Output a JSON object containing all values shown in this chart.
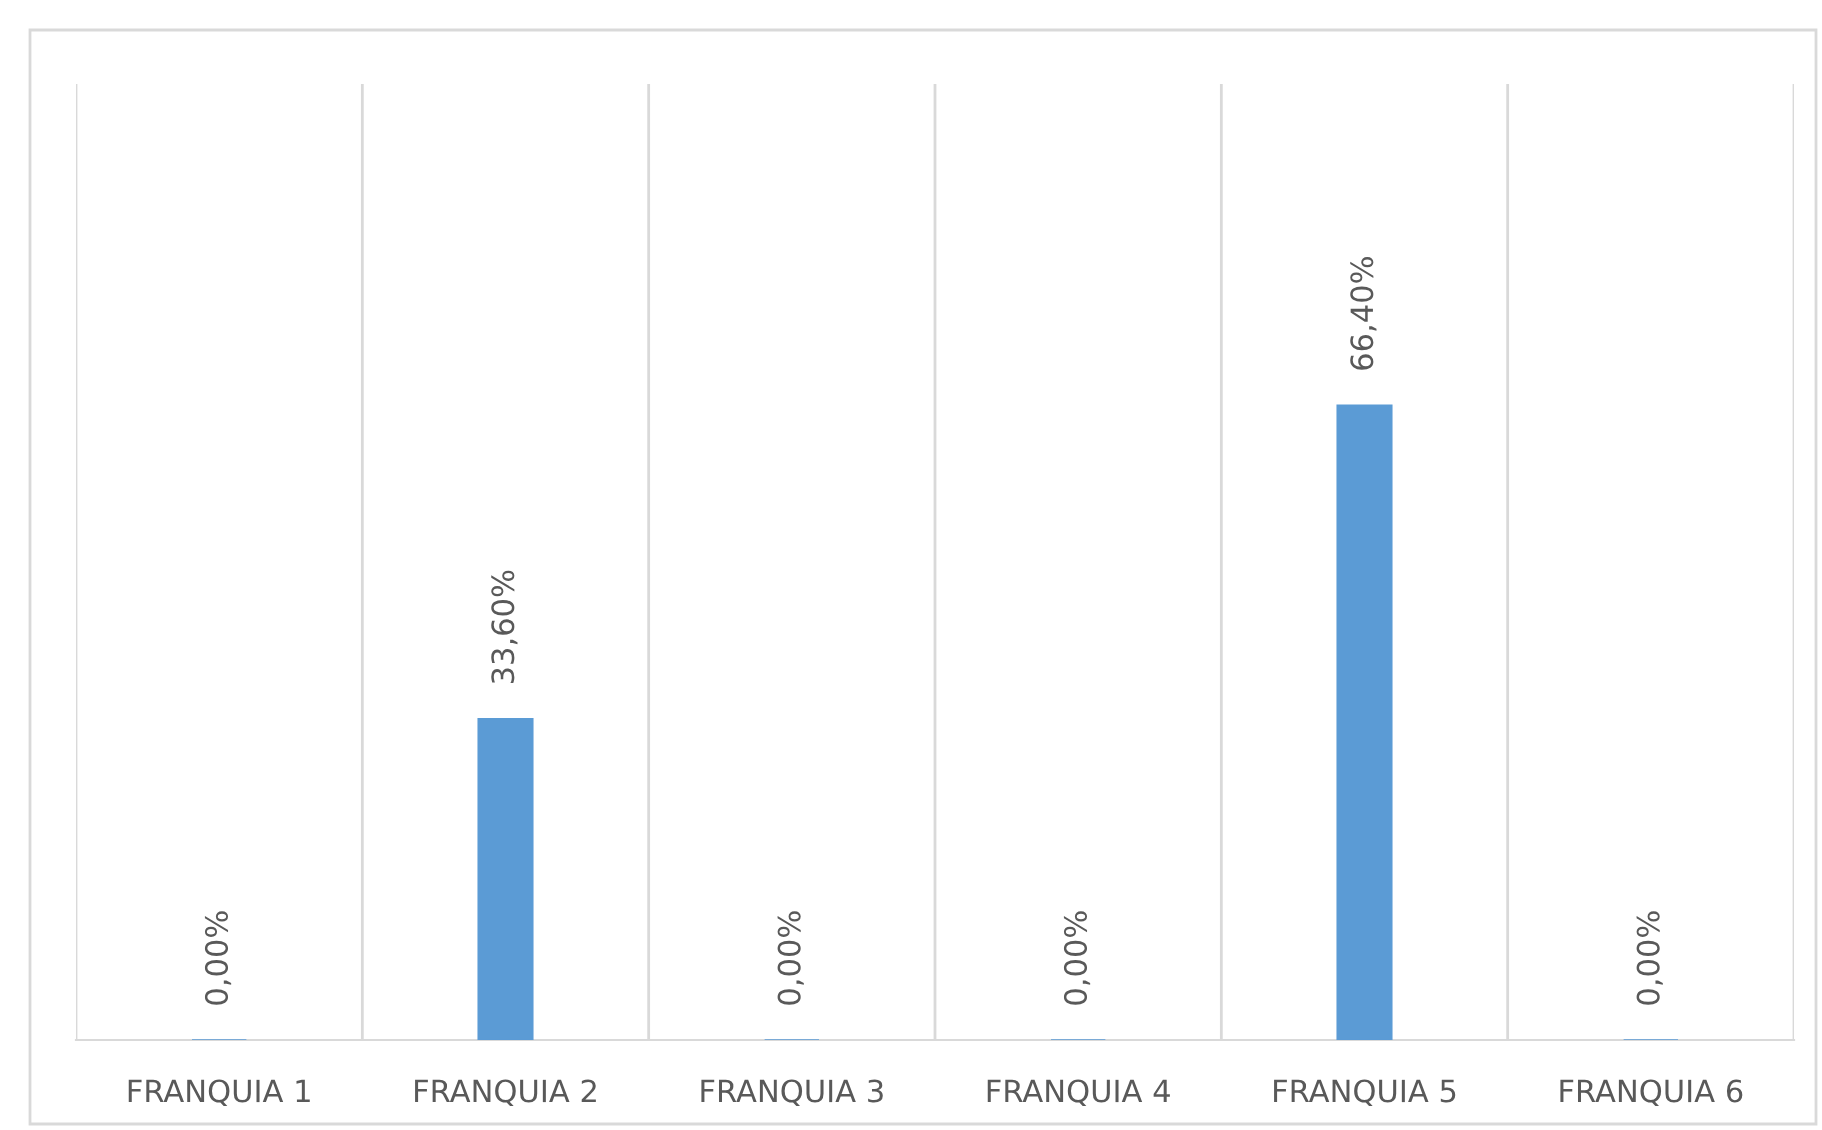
{
  "chart_data": {
    "type": "bar",
    "categories": [
      "FRANQUIA 1",
      "FRANQUIA 2",
      "FRANQUIA 3",
      "FRANQUIA 4",
      "FRANQUIA 5",
      "FRANQUIA 6"
    ],
    "values": [
      0,
      33.6,
      0,
      0,
      66.4,
      0
    ],
    "value_labels": [
      "0,00%",
      "33,60%",
      "0,00%",
      "0,00%",
      "66,40%",
      "0,00%"
    ],
    "color": "#5b9bd5",
    "ylim": [
      0,
      100
    ],
    "grid": "x",
    "legend": false
  }
}
